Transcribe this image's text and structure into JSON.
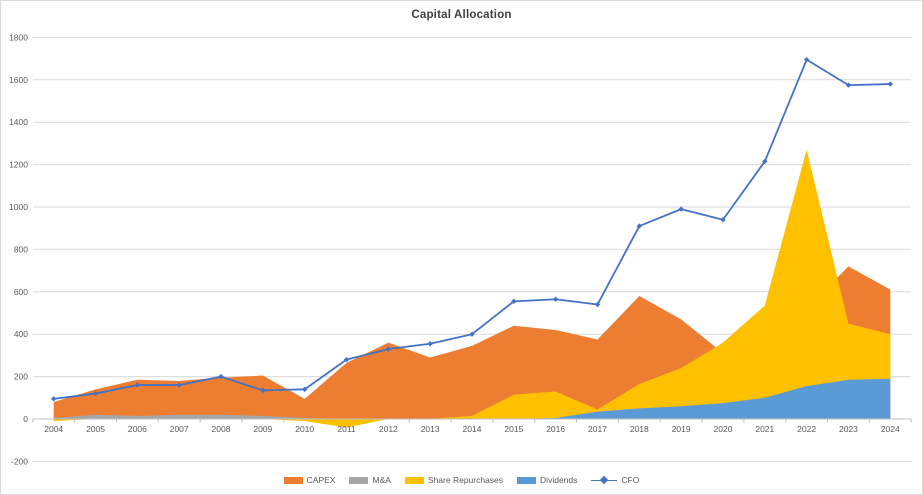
{
  "chart_data": {
    "type": "area",
    "area_mode": "overlap",
    "title": "Capital Allocation",
    "xlabel": "",
    "ylabel": "",
    "ylim": [
      -200,
      1800
    ],
    "ytick_step": 200,
    "grid": true,
    "legend_position": "bottom",
    "categories": [
      "2004",
      "2005",
      "2006",
      "2007",
      "2008",
      "2009",
      "2010",
      "2011",
      "2012",
      "2013",
      "2014",
      "2015",
      "2016",
      "2017",
      "2018",
      "2019",
      "2020",
      "2021",
      "2022",
      "2023",
      "2024"
    ],
    "y_tick_labels": [
      "-200",
      "0",
      "200",
      "400",
      "600",
      "800",
      "1000",
      "1200",
      "1400",
      "1600",
      "1800"
    ],
    "series": [
      {
        "name": "CAPEX",
        "type": "area",
        "color": "#ED7D31",
        "values": [
          80,
          140,
          185,
          180,
          195,
          205,
          95,
          265,
          360,
          290,
          345,
          440,
          420,
          375,
          580,
          470,
          310,
          360,
          520,
          720,
          610
        ]
      },
      {
        "name": "M&A",
        "type": "area",
        "color": "#A5A5A5",
        "values": [
          5,
          20,
          15,
          20,
          20,
          15,
          5,
          0,
          0,
          0,
          0,
          0,
          0,
          0,
          0,
          0,
          0,
          0,
          0,
          0,
          0
        ]
      },
      {
        "name": "Share Repurchases",
        "type": "area",
        "color": "#FFC000",
        "values": [
          -10,
          0,
          0,
          0,
          0,
          0,
          -10,
          -40,
          0,
          0,
          15,
          115,
          130,
          45,
          165,
          240,
          360,
          535,
          1270,
          450,
          400
        ]
      },
      {
        "name": "Dividends",
        "type": "area",
        "color": "#5B9BD5",
        "values": [
          0,
          0,
          0,
          0,
          0,
          0,
          0,
          0,
          0,
          0,
          0,
          0,
          5,
          35,
          50,
          60,
          75,
          100,
          155,
          185,
          190
        ]
      },
      {
        "name": "CFO",
        "type": "line",
        "color": "#4472C4",
        "marker": "diamond",
        "values": [
          95,
          120,
          160,
          160,
          200,
          135,
          140,
          280,
          330,
          355,
          400,
          555,
          565,
          540,
          910,
          990,
          940,
          1215,
          1695,
          1575,
          1580
        ]
      }
    ]
  },
  "colors": {
    "gridline": "#D9D9D9",
    "axis_line": "#BFBFBF",
    "tick_label": "#595959",
    "title": "#404040",
    "background": "#FFFFFF"
  }
}
